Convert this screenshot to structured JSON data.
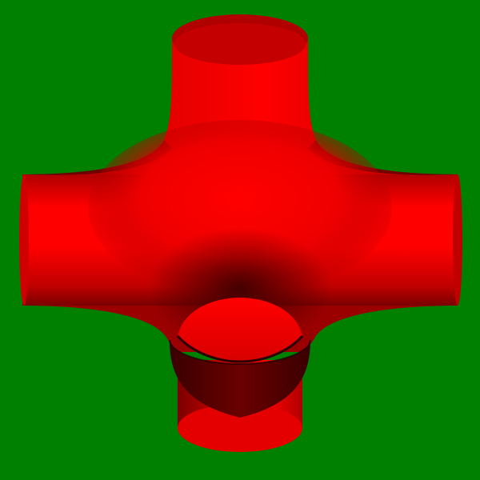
{
  "scene": {
    "subject": "red-tube-junction-render",
    "colors": {
      "background": "#008000",
      "surface_highlight": "#ff0000",
      "surface_mid": "#cc0000",
      "surface_shadow": "#550000",
      "surface_deep": "#2a0000"
    }
  }
}
